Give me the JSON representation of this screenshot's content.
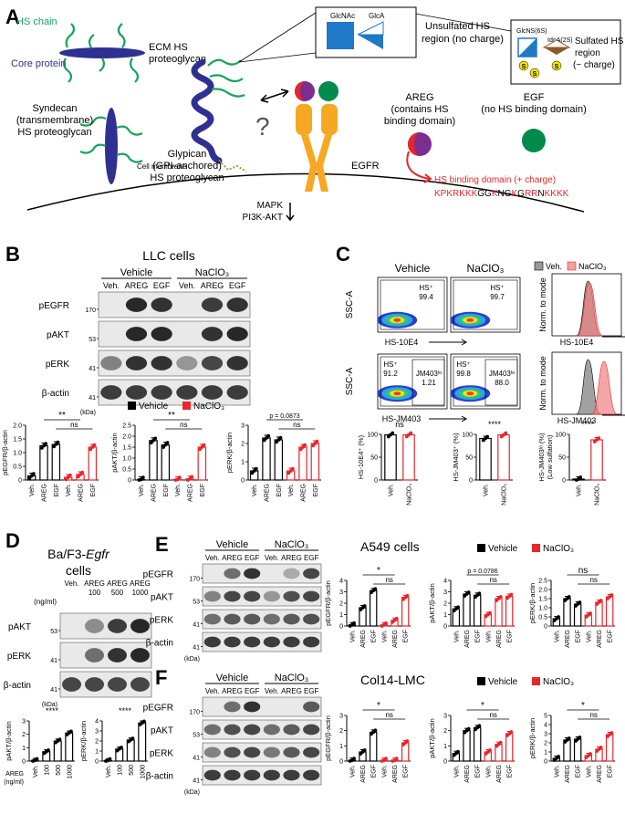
{
  "panelA": {
    "letter": "A",
    "hs_chain": "HS chain",
    "core_protein": "Core protein",
    "ecm_hspg_1": "ECM HS",
    "ecm_hspg_2": "proteoglycan",
    "syndecan_1": "Syndecan",
    "syndecan_2": "(transmembrane)",
    "syndecan_3": "HS proteoglycan",
    "glypican_1": "Glypican",
    "glypican_2": "(GPI-anchored)",
    "glypican_3": "HS proteoglycan",
    "cell_membrane": "Cell membrane",
    "mapk": "MAPK",
    "pi3k": "PI3K-AKT",
    "egfr": "EGFR",
    "glcnac": "GlcNAc",
    "glca": "GlcA",
    "unsulfated_1": "Unsulfated HS",
    "unsulfated_2": "region (no charge)",
    "glcns": "GlcNS(6S)",
    "idoa": "IdoA(2S)",
    "sulfated_1": "Sulfated HS",
    "sulfated_2": "region",
    "sulfated_3": "(− charge)",
    "s_letter": "S",
    "areg_1": "AREG",
    "areg_2": "(contains HS",
    "areg_3": "binding domain)",
    "egf_1": "EGF",
    "egf_2": "(no HS binding domain)",
    "hs_domain": "HS binding domain (+ charge)",
    "question": "?"
  },
  "panelB": {
    "letter": "B",
    "title": "LLC cells",
    "vehicle": "Vehicle",
    "naclo3": "NaClO₃",
    "lanes": [
      "Veh.",
      "AREG",
      "EGF",
      "Veh.",
      "AREG",
      "EGF"
    ],
    "rows": [
      "pEGFR",
      "pAKT",
      "pERK",
      "β-actin"
    ],
    "mw": [
      "170",
      "53",
      "41",
      "41"
    ],
    "kda": "(kDa)",
    "legend": [
      "Vehicle",
      "NaClO₃"
    ],
    "charts": [
      {
        "ylabel": "pEGFR/β-actin",
        "yticks": [
          "0",
          "0.5",
          "1.0",
          "1.5",
          "2.0"
        ],
        "sig": "**",
        "ns": "ns"
      },
      {
        "ylabel": "pAKT/β-actin",
        "yticks": [
          "0",
          "0.5",
          "1.0",
          "1.5",
          "2.0",
          "2.5"
        ],
        "sig": "**",
        "ns": "ns"
      },
      {
        "ylabel": "pERK/β-actin",
        "yticks": [
          "0",
          "1",
          "2",
          "3"
        ],
        "sig": "p = 0.0873",
        "ns": "ns"
      }
    ]
  },
  "panelC": {
    "letter": "C",
    "vehicle": "Vehicle",
    "naclo3": "NaClO₃",
    "legend_veh": "Veh.",
    "legend_nac": "NaClO₃",
    "ssca": "SSC-A",
    "x1": "HS-10E4",
    "x2": "HS-JM403",
    "hs_plus": "HS⁺",
    "v1": "99.4",
    "v2": "99.7",
    "v3": "91.2",
    "v4": "99.8",
    "jm403lo": "JM403ˡᵒ",
    "v5": "1.21",
    "v6": "88.0",
    "norm": "Norm. to mode",
    "charts": [
      {
        "ylabel": "HS-10E4⁺ (%)",
        "yticks": [
          "0",
          "50",
          "100"
        ],
        "sig": "ns"
      },
      {
        "ylabel": "HS-JM403⁺ (%)",
        "yticks": [
          "0",
          "50",
          "100"
        ],
        "sig": "****"
      },
      {
        "ylabel": "HS-JM403ˡᵒ (%)",
        "ylabel2": "(Low sulfation)",
        "yticks": [
          "0",
          "50",
          "100"
        ],
        "sig": "****"
      }
    ],
    "xcats": [
      "Veh.",
      "NaClO₃"
    ]
  },
  "panelD": {
    "letter": "D",
    "title_1": "Ba/F3-",
    "title_2": "Egfr",
    "title_3": "cells",
    "lanes": [
      "Veh.",
      "AREG",
      "AREG",
      "AREG"
    ],
    "doses": [
      "100",
      "500",
      "1000"
    ],
    "ngml": "(ng/ml)",
    "rows": [
      "pAKT",
      "pERK",
      "β-actin"
    ],
    "mw": [
      "53",
      "41",
      "41"
    ],
    "kda": "(kDa)",
    "charts": [
      {
        "ylabel": "pAKT/β-actin",
        "yticks": [
          "0",
          "1",
          "2",
          "3"
        ],
        "sig": "****"
      },
      {
        "ylabel": "pERK/β-actin",
        "yticks": [
          "0",
          "1",
          "2",
          "3",
          "4"
        ],
        "sig": "****"
      }
    ],
    "xcats": [
      "Veh.",
      "100",
      "500",
      "1000"
    ],
    "areg": "AREG",
    "areg_unit": "(ng/ml)"
  },
  "panelE": {
    "letter": "E",
    "title": "A549 cells",
    "vehicle": "Vehicle",
    "naclo3": "NaClO₃",
    "lanes": [
      "Veh.",
      "AREG",
      "EGF",
      "Veh.",
      "AREG",
      "EGF"
    ],
    "rows": [
      "pEGFR",
      "pAKT",
      "pERK",
      "β-actin"
    ],
    "mw": [
      "170",
      "53",
      "41",
      "41"
    ],
    "kda": "(kDa)",
    "legend": [
      "Vehicle",
      "NaClO₃"
    ],
    "charts": [
      {
        "ylabel": "pEGFR/β-actin",
        "yticks": [
          "0",
          "1",
          "2",
          "3",
          "4"
        ],
        "sig": "*",
        "ns": "ns"
      },
      {
        "ylabel": "pAKT/β-actin",
        "yticks": [
          "0",
          "1",
          "2",
          "3",
          "4"
        ],
        "sig": "p = 0.0786",
        "ns": "ns"
      },
      {
        "ylabel": "pERK/β-actin",
        "yticks": [
          "0",
          "0.5",
          "1.0",
          "1.5",
          "2.0",
          "2.5"
        ],
        "sig": "ns",
        "ns": "ns"
      }
    ]
  },
  "panelF": {
    "letter": "F",
    "title": "Col14-LMC",
    "vehicle": "Vehicle",
    "naclo3": "NaClO₃",
    "lanes": [
      "Veh.",
      "AREG",
      "EGF",
      "Veh.",
      "AREG",
      "EGF"
    ],
    "rows": [
      "pEGFR",
      "pAKT",
      "pERK",
      "β-actin"
    ],
    "mw": [
      "170",
      "53",
      "41",
      "41"
    ],
    "kda": "(kDa)",
    "legend": [
      "Vehicle",
      "NaClO₃"
    ],
    "charts": [
      {
        "ylabel": "pEGFR/β-actin",
        "yticks": [
          "0",
          "1",
          "2",
          "3"
        ],
        "sig": "*",
        "ns": "ns"
      },
      {
        "ylabel": "pAKT/β-actin",
        "yticks": [
          "0",
          "1",
          "2",
          "3"
        ],
        "sig": "*",
        "ns": "ns"
      },
      {
        "ylabel": "pERK/β-actin",
        "yticks": [
          "0",
          "1",
          "2",
          "3",
          "4",
          "5"
        ],
        "sig": "*",
        "ns": "ns"
      }
    ]
  },
  "xcats6": [
    "Veh.",
    "AREG",
    "EGF",
    "Veh.",
    "AREG",
    "EGF"
  ],
  "colors": {
    "vehicle": "#000000",
    "naclo3": "#e8262b",
    "hs": "#19a35a",
    "protein": "#2e3192",
    "egfr": "#f7a823"
  },
  "chart_data": [
    {
      "type": "bar",
      "panel": "B",
      "categories": [
        "Veh.",
        "AREG",
        "EGF",
        "Veh.",
        "AREG",
        "EGF"
      ],
      "values": [
        0.15,
        1.25,
        1.3,
        0.1,
        0.2,
        1.2
      ],
      "ylim": [
        0,
        2
      ]
    },
    {
      "type": "bar",
      "panel": "B",
      "categories": [
        "Veh.",
        "AREG",
        "EGF",
        "Veh.",
        "AREG",
        "EGF"
      ],
      "values": [
        0.02,
        1.8,
        1.6,
        0.02,
        0.05,
        1.5
      ],
      "ylim": [
        0,
        2.5
      ]
    },
    {
      "type": "bar",
      "panel": "B",
      "categories": [
        "Veh.",
        "AREG",
        "EGF",
        "Veh.",
        "AREG",
        "EGF"
      ],
      "values": [
        0.5,
        2.3,
        2.2,
        0.5,
        1.8,
        2.0
      ],
      "ylim": [
        0,
        3
      ]
    },
    {
      "type": "bar",
      "panel": "C",
      "categories": [
        "Veh.",
        "NaClO₃"
      ],
      "values": [
        99,
        99
      ],
      "ylim": [
        0,
        100
      ]
    },
    {
      "type": "bar",
      "panel": "C",
      "categories": [
        "Veh.",
        "NaClO₃"
      ],
      "values": [
        91,
        99
      ],
      "ylim": [
        0,
        100
      ]
    },
    {
      "type": "bar",
      "panel": "C",
      "categories": [
        "Veh.",
        "NaClO₃"
      ],
      "values": [
        2,
        88
      ],
      "ylim": [
        0,
        100
      ]
    },
    {
      "type": "bar",
      "panel": "D",
      "categories": [
        "Veh.",
        "100",
        "500",
        "1000"
      ],
      "values": [
        0.05,
        0.7,
        1.5,
        2.1
      ],
      "ylim": [
        0,
        3
      ]
    },
    {
      "type": "bar",
      "panel": "D",
      "categories": [
        "Veh.",
        "100",
        "500",
        "1000"
      ],
      "values": [
        0.05,
        1.2,
        2.1,
        3.8
      ],
      "ylim": [
        0,
        4
      ]
    },
    {
      "type": "bar",
      "panel": "E",
      "categories": [
        "Veh.",
        "AREG",
        "EGF",
        "Veh.",
        "AREG",
        "EGF"
      ],
      "values": [
        0.1,
        1.6,
        3.1,
        0.1,
        0.5,
        2.5
      ],
      "ylim": [
        0,
        4
      ]
    },
    {
      "type": "bar",
      "panel": "E",
      "categories": [
        "Veh.",
        "AREG",
        "EGF",
        "Veh.",
        "AREG",
        "EGF"
      ],
      "values": [
        1.5,
        2.8,
        2.7,
        1.0,
        2.4,
        2.6
      ],
      "ylim": [
        0,
        4
      ]
    },
    {
      "type": "bar",
      "panel": "E",
      "categories": [
        "Veh.",
        "AREG",
        "EGF",
        "Veh.",
        "AREG",
        "EGF"
      ],
      "values": [
        0.4,
        1.5,
        1.2,
        0.6,
        1.3,
        1.6
      ],
      "ylim": [
        0,
        2.5
      ]
    },
    {
      "type": "bar",
      "panel": "F",
      "categories": [
        "Veh.",
        "AREG",
        "EGF",
        "Veh.",
        "AREG",
        "EGF"
      ],
      "values": [
        0.05,
        0.6,
        1.9,
        0.05,
        0.05,
        1.2
      ],
      "ylim": [
        0,
        3
      ]
    },
    {
      "type": "bar",
      "panel": "F",
      "categories": [
        "Veh.",
        "AREG",
        "EGF",
        "Veh.",
        "AREG",
        "EGF"
      ],
      "values": [
        0.5,
        2.0,
        2.2,
        0.6,
        1.1,
        1.8
      ],
      "ylim": [
        0,
        3
      ]
    },
    {
      "type": "bar",
      "panel": "F",
      "categories": [
        "Veh.",
        "AREG",
        "EGF",
        "Veh.",
        "AREG",
        "EGF"
      ],
      "values": [
        0.3,
        2.3,
        2.4,
        0.6,
        1.3,
        2.9
      ],
      "ylim": [
        0,
        5
      ]
    }
  ]
}
